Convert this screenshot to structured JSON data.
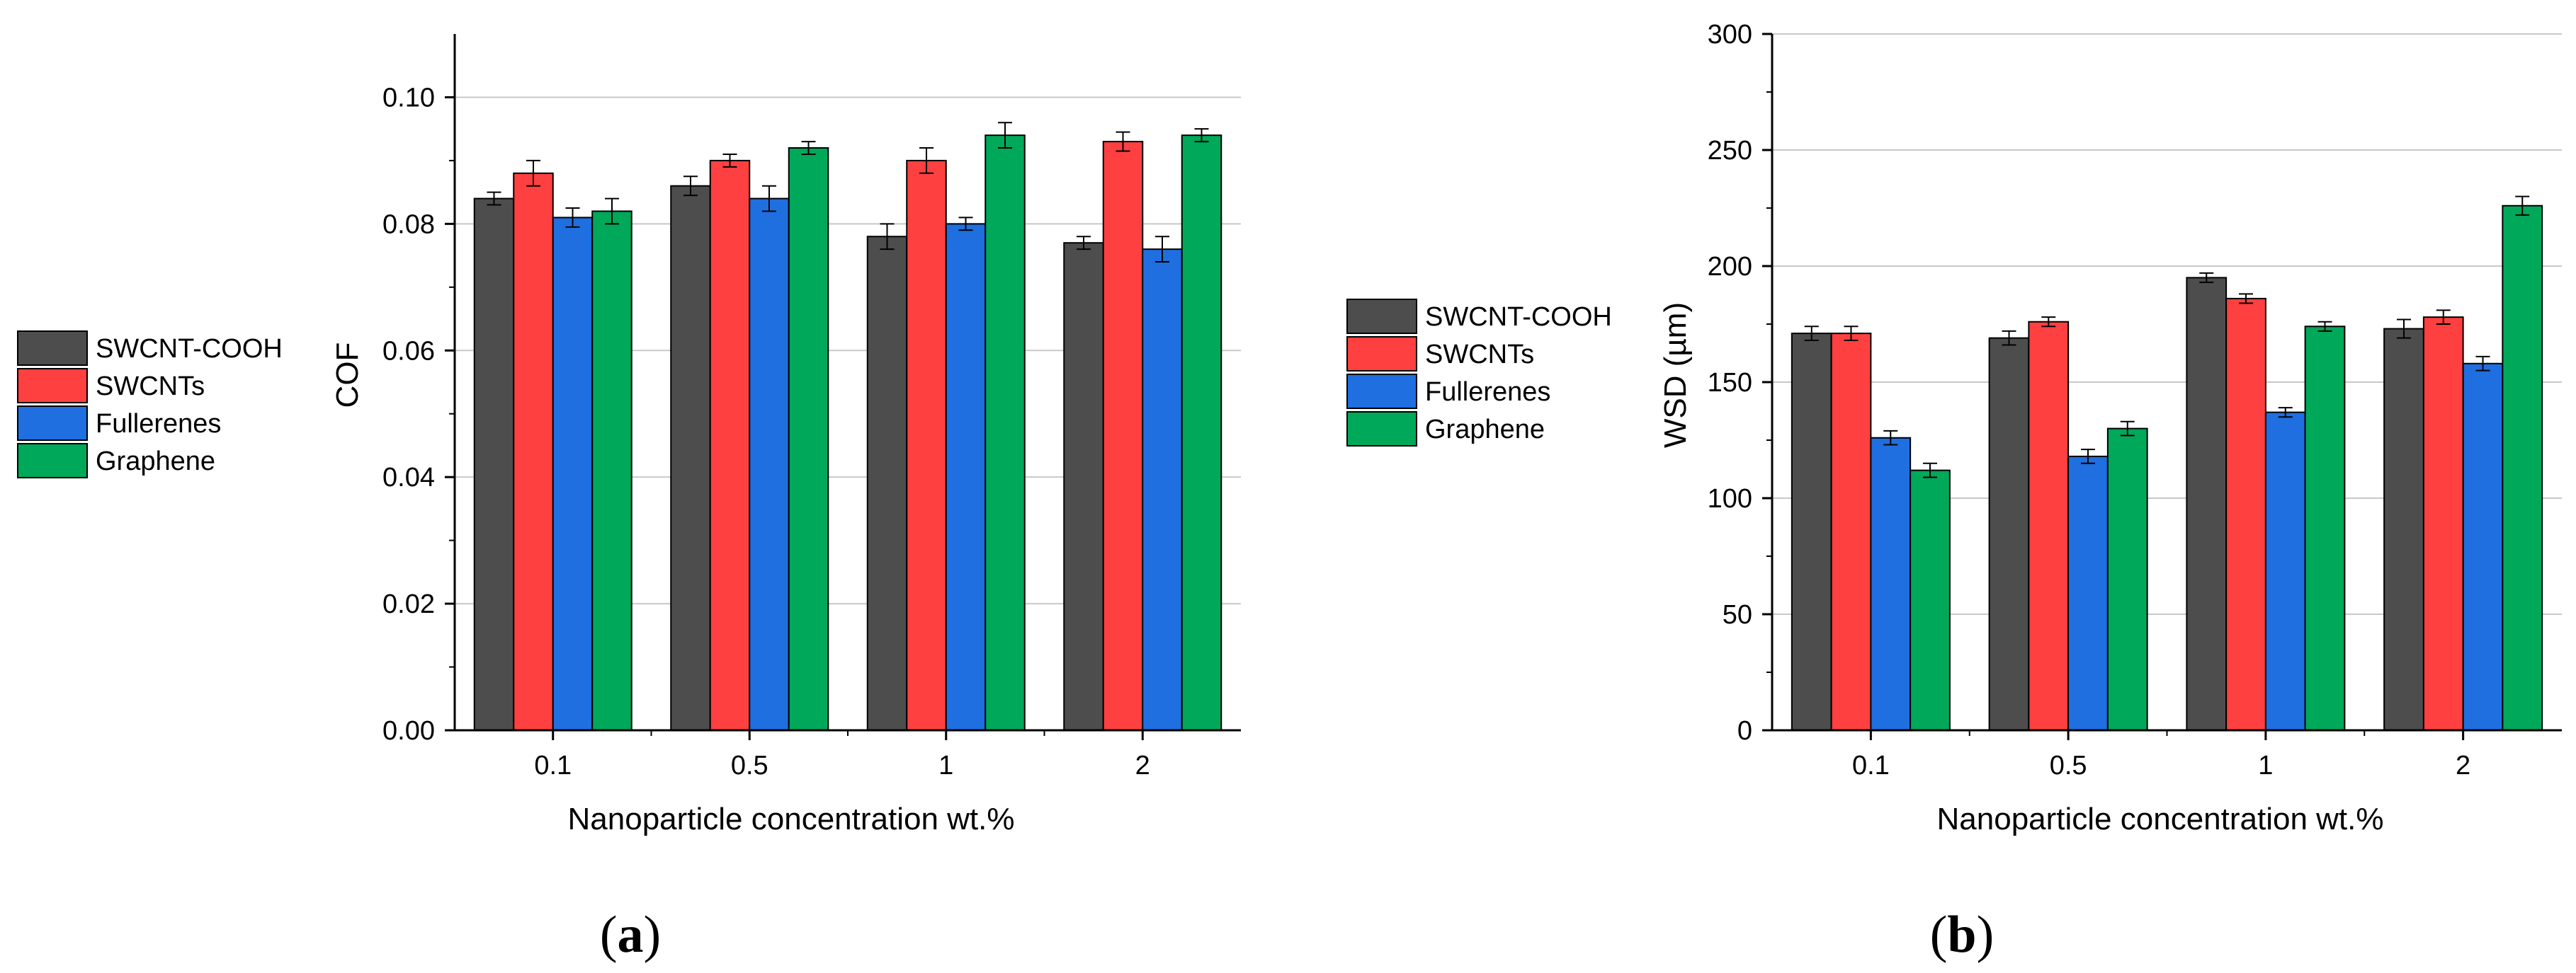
{
  "figure": {
    "panel_a_label": "a",
    "panel_b_label": "b"
  },
  "chart_data": [
    {
      "type": "bar",
      "panel": "a",
      "title": "",
      "xlabel": "Nanoparticle concentration wt.%",
      "ylabel": "COF",
      "categories": [
        "0.1",
        "0.5",
        "1",
        "2"
      ],
      "ylim": [
        0,
        0.11
      ],
      "yticks": [
        "0.00",
        "0.02",
        "0.04",
        "0.06",
        "0.08",
        "0.10"
      ],
      "ytick_values": [
        0,
        0.02,
        0.04,
        0.06,
        0.08,
        0.1
      ],
      "grid": true,
      "legend_position": "left-outside",
      "series": [
        {
          "name": "SWCNT-COOH",
          "color": "#4d4d4d",
          "values": [
            0.084,
            0.086,
            0.078,
            0.077
          ],
          "errors": [
            0.001,
            0.0015,
            0.002,
            0.001
          ]
        },
        {
          "name": "SWCNTs",
          "color": "#ff4040",
          "values": [
            0.088,
            0.09,
            0.09,
            0.093
          ],
          "errors": [
            0.002,
            0.001,
            0.002,
            0.0015
          ]
        },
        {
          "name": "Fullerenes",
          "color": "#1f6fe0",
          "values": [
            0.081,
            0.084,
            0.08,
            0.076
          ],
          "errors": [
            0.0015,
            0.002,
            0.001,
            0.002
          ]
        },
        {
          "name": "Graphene",
          "color": "#00a85a",
          "values": [
            0.082,
            0.092,
            0.094,
            0.094
          ],
          "errors": [
            0.002,
            0.001,
            0.002,
            0.001
          ]
        }
      ]
    },
    {
      "type": "bar",
      "panel": "b",
      "title": "",
      "xlabel": "Nanoparticle concentration wt.%",
      "ylabel": "WSD (µm)",
      "categories": [
        "0.1",
        "0.5",
        "1",
        "2"
      ],
      "ylim": [
        0,
        300
      ],
      "yticks": [
        "0",
        "50",
        "100",
        "150",
        "200",
        "250",
        "300"
      ],
      "ytick_values": [
        0,
        50,
        100,
        150,
        200,
        250,
        300
      ],
      "grid": true,
      "legend_position": "left-outside",
      "series": [
        {
          "name": "SWCNT-COOH",
          "color": "#4d4d4d",
          "values": [
            171,
            169,
            195,
            173
          ],
          "errors": [
            3,
            3,
            2,
            4
          ]
        },
        {
          "name": "SWCNTs",
          "color": "#ff4040",
          "values": [
            171,
            176,
            186,
            178
          ],
          "errors": [
            3,
            2,
            2,
            3
          ]
        },
        {
          "name": "Fullerenes",
          "color": "#1f6fe0",
          "values": [
            126,
            118,
            137,
            158
          ],
          "errors": [
            3,
            3,
            2,
            3
          ]
        },
        {
          "name": "Graphene",
          "color": "#00a85a",
          "values": [
            112,
            130,
            174,
            226
          ],
          "errors": [
            3,
            3,
            2,
            4
          ]
        }
      ]
    }
  ]
}
